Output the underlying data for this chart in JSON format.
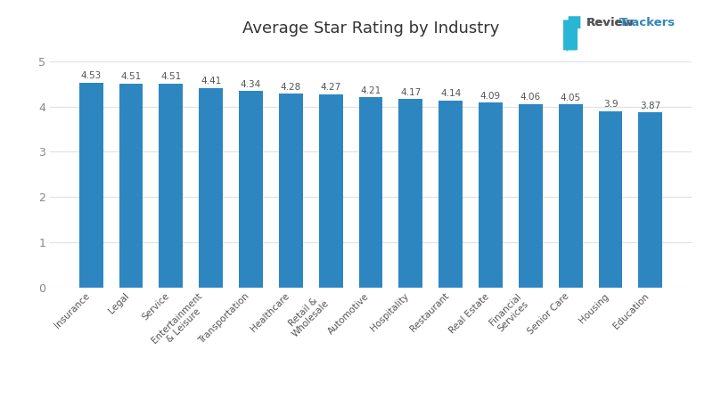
{
  "categories": [
    "Insurance",
    "Legal",
    "Service",
    "Entertainment\n& Leisure",
    "Transportation",
    "Healthcare",
    "Retail &\nWholesale",
    "Automotive",
    "Hospitality",
    "Restaurant",
    "Real Estate",
    "Financial\nServices",
    "Senior Care",
    "Housing",
    "Education"
  ],
  "values": [
    4.53,
    4.51,
    4.51,
    4.41,
    4.34,
    4.28,
    4.27,
    4.21,
    4.17,
    4.14,
    4.09,
    4.06,
    4.05,
    3.9,
    3.87
  ],
  "bar_color": "#2e86c1",
  "title": "Average Star Rating by Industry",
  "title_fontsize": 13,
  "ylim": [
    0,
    5.3
  ],
  "yticks": [
    0,
    1,
    2,
    3,
    4,
    5
  ],
  "background_color": "#ffffff",
  "label_fontsize": 7.5,
  "value_fontsize": 7.5,
  "grid_color": "#e0e0e0",
  "logo_review_color": "#555555",
  "logo_trackers_color": "#2e86c1",
  "logo_icon_color": "#29b6d4"
}
